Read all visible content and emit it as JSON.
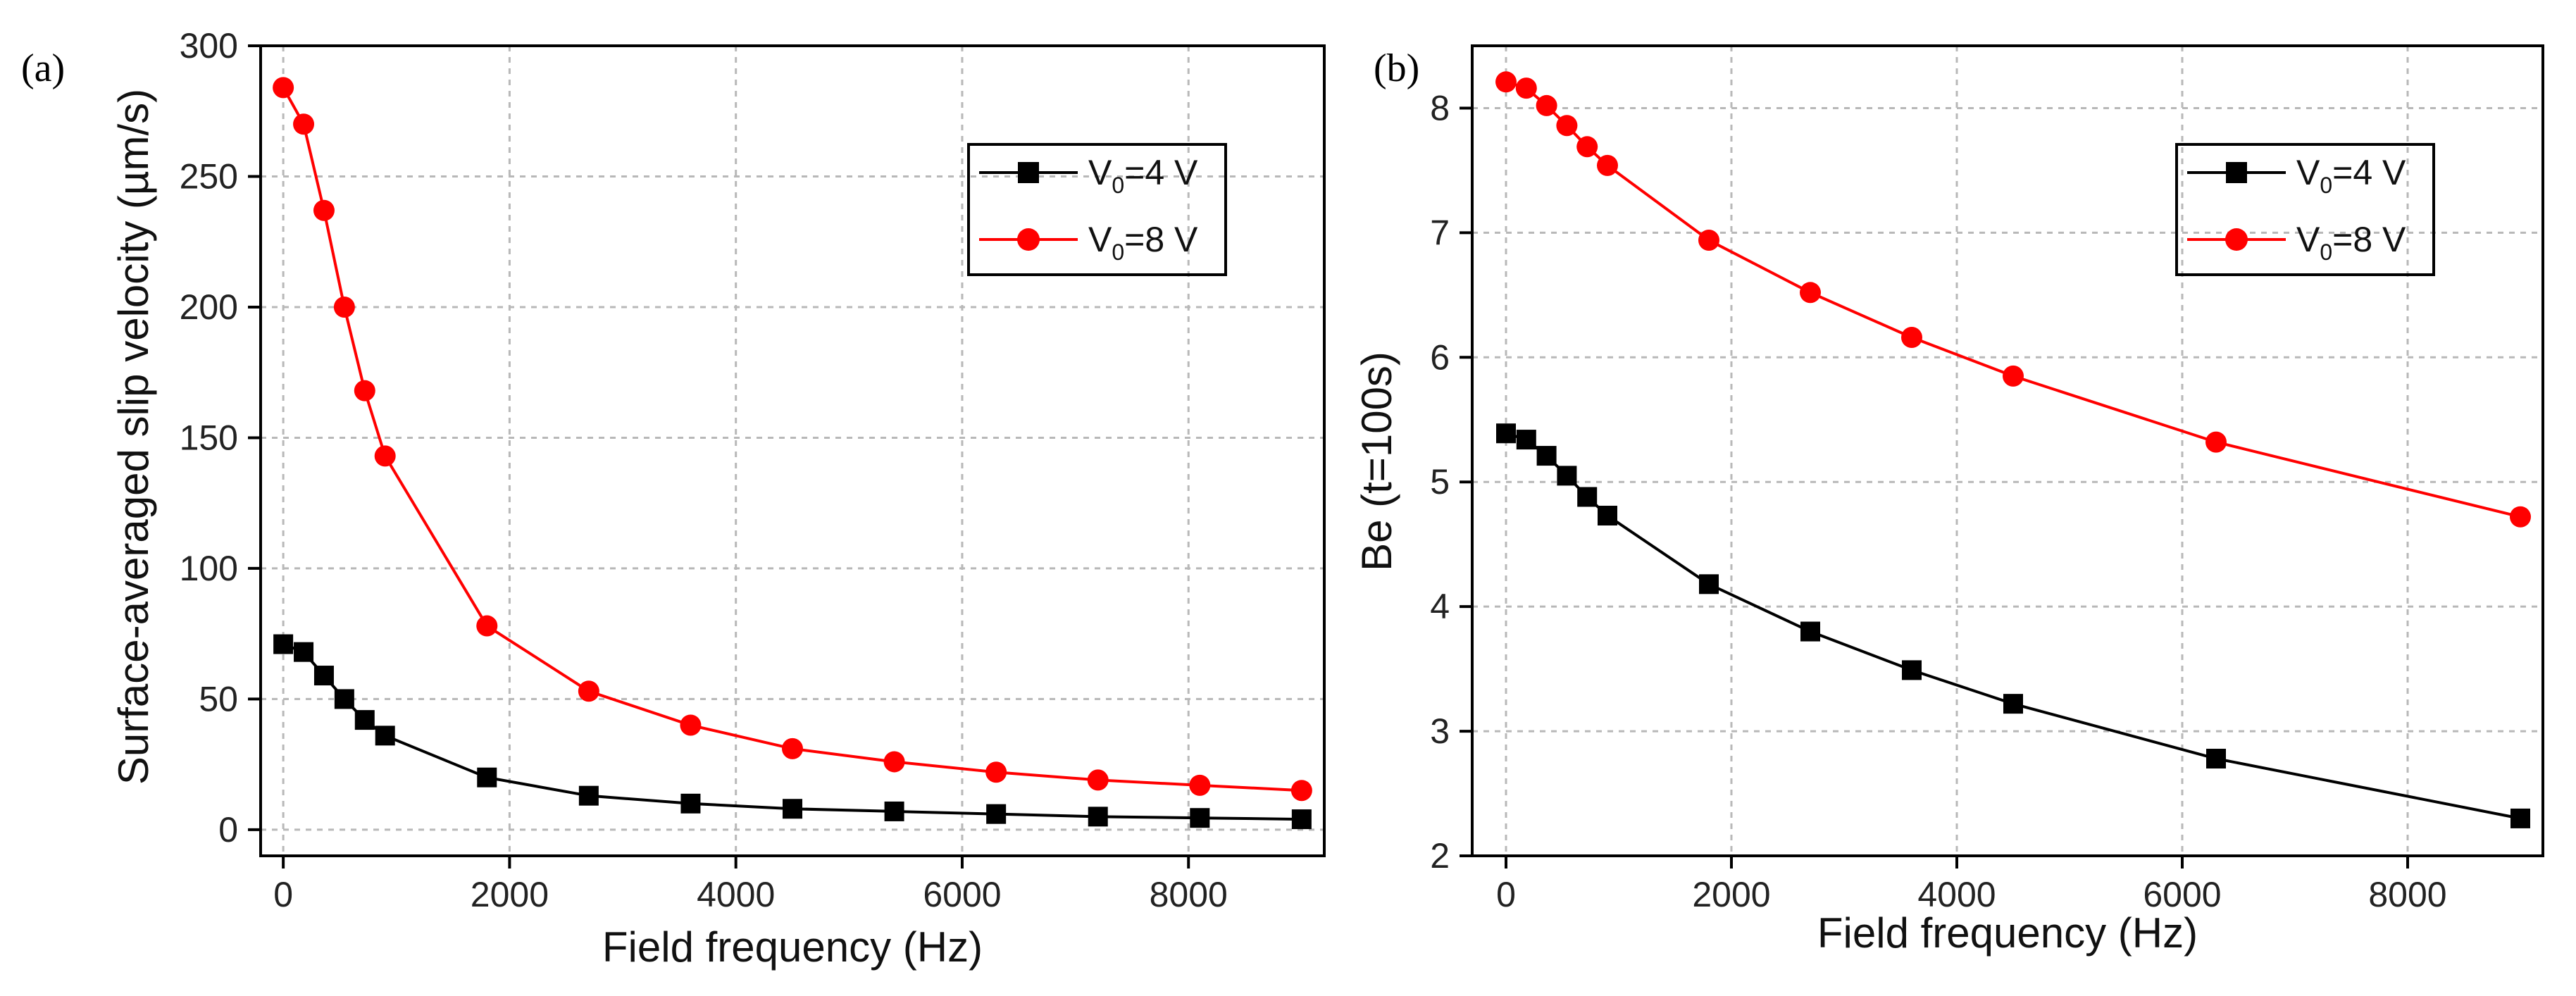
{
  "chart_data": [
    {
      "type": "line",
      "panel_label": "(a)",
      "title": "",
      "xlabel": "Field frequency (Hz)",
      "ylabel": "Surface-averaged slip velocity (µm/s)",
      "xlim": [
        -200,
        9200
      ],
      "ylim": [
        -10,
        300
      ],
      "xticks": [
        0,
        2000,
        4000,
        6000,
        8000
      ],
      "yticks": [
        0,
        50,
        100,
        150,
        200,
        250,
        300
      ],
      "grid": true,
      "legend_position": "top-right",
      "series": [
        {
          "name": "V0=4 V",
          "legend_label": {
            "main": "V",
            "sub": "0",
            "rest": "=4 V"
          },
          "color": "#000000",
          "marker": "square",
          "x": [
            0,
            180,
            360,
            540,
            720,
            900,
            1800,
            2700,
            3600,
            4500,
            5400,
            6300,
            7200,
            8100,
            9000
          ],
          "y": [
            71,
            68,
            59,
            50,
            42,
            36,
            20,
            13,
            10,
            8,
            7,
            6,
            5,
            4.5,
            4
          ]
        },
        {
          "name": "V0=8 V",
          "legend_label": {
            "main": "V",
            "sub": "0",
            "rest": "=8 V"
          },
          "color": "#ff0000",
          "marker": "circle",
          "x": [
            0,
            180,
            360,
            540,
            720,
            900,
            1800,
            2700,
            3600,
            4500,
            5400,
            6300,
            7200,
            8100,
            9000
          ],
          "y": [
            284,
            270,
            237,
            200,
            168,
            143,
            78,
            53,
            40,
            31,
            26,
            22,
            19,
            17,
            15
          ]
        }
      ]
    },
    {
      "type": "line",
      "panel_label": "(b)",
      "title": "",
      "xlabel": "Field frequency (Hz)",
      "ylabel": "Be (t=100s)",
      "xlim": [
        -300,
        9200
      ],
      "ylim": [
        2,
        8.5
      ],
      "xticks": [
        0,
        2000,
        4000,
        6000,
        8000
      ],
      "yticks": [
        2,
        3,
        4,
        5,
        6,
        7,
        8
      ],
      "grid": true,
      "legend_position": "top-right",
      "series": [
        {
          "name": "V0=4 V",
          "legend_label": {
            "main": "V",
            "sub": "0",
            "rest": "=4 V"
          },
          "color": "#000000",
          "marker": "square",
          "x": [
            0,
            180,
            360,
            540,
            720,
            900,
            1800,
            2700,
            3600,
            4500,
            6300,
            9000
          ],
          "y": [
            5.39,
            5.34,
            5.21,
            5.05,
            4.88,
            4.73,
            4.18,
            3.8,
            3.49,
            3.22,
            2.78,
            2.3
          ]
        },
        {
          "name": "V0=8 V",
          "legend_label": {
            "main": "V",
            "sub": "0",
            "rest": "=8 V"
          },
          "color": "#ff0000",
          "marker": "circle",
          "x": [
            0,
            180,
            360,
            540,
            720,
            900,
            1800,
            2700,
            3600,
            4500,
            6300,
            9000
          ],
          "y": [
            8.21,
            8.16,
            8.02,
            7.86,
            7.69,
            7.54,
            6.94,
            6.52,
            6.16,
            5.85,
            5.32,
            4.72
          ]
        }
      ]
    }
  ]
}
